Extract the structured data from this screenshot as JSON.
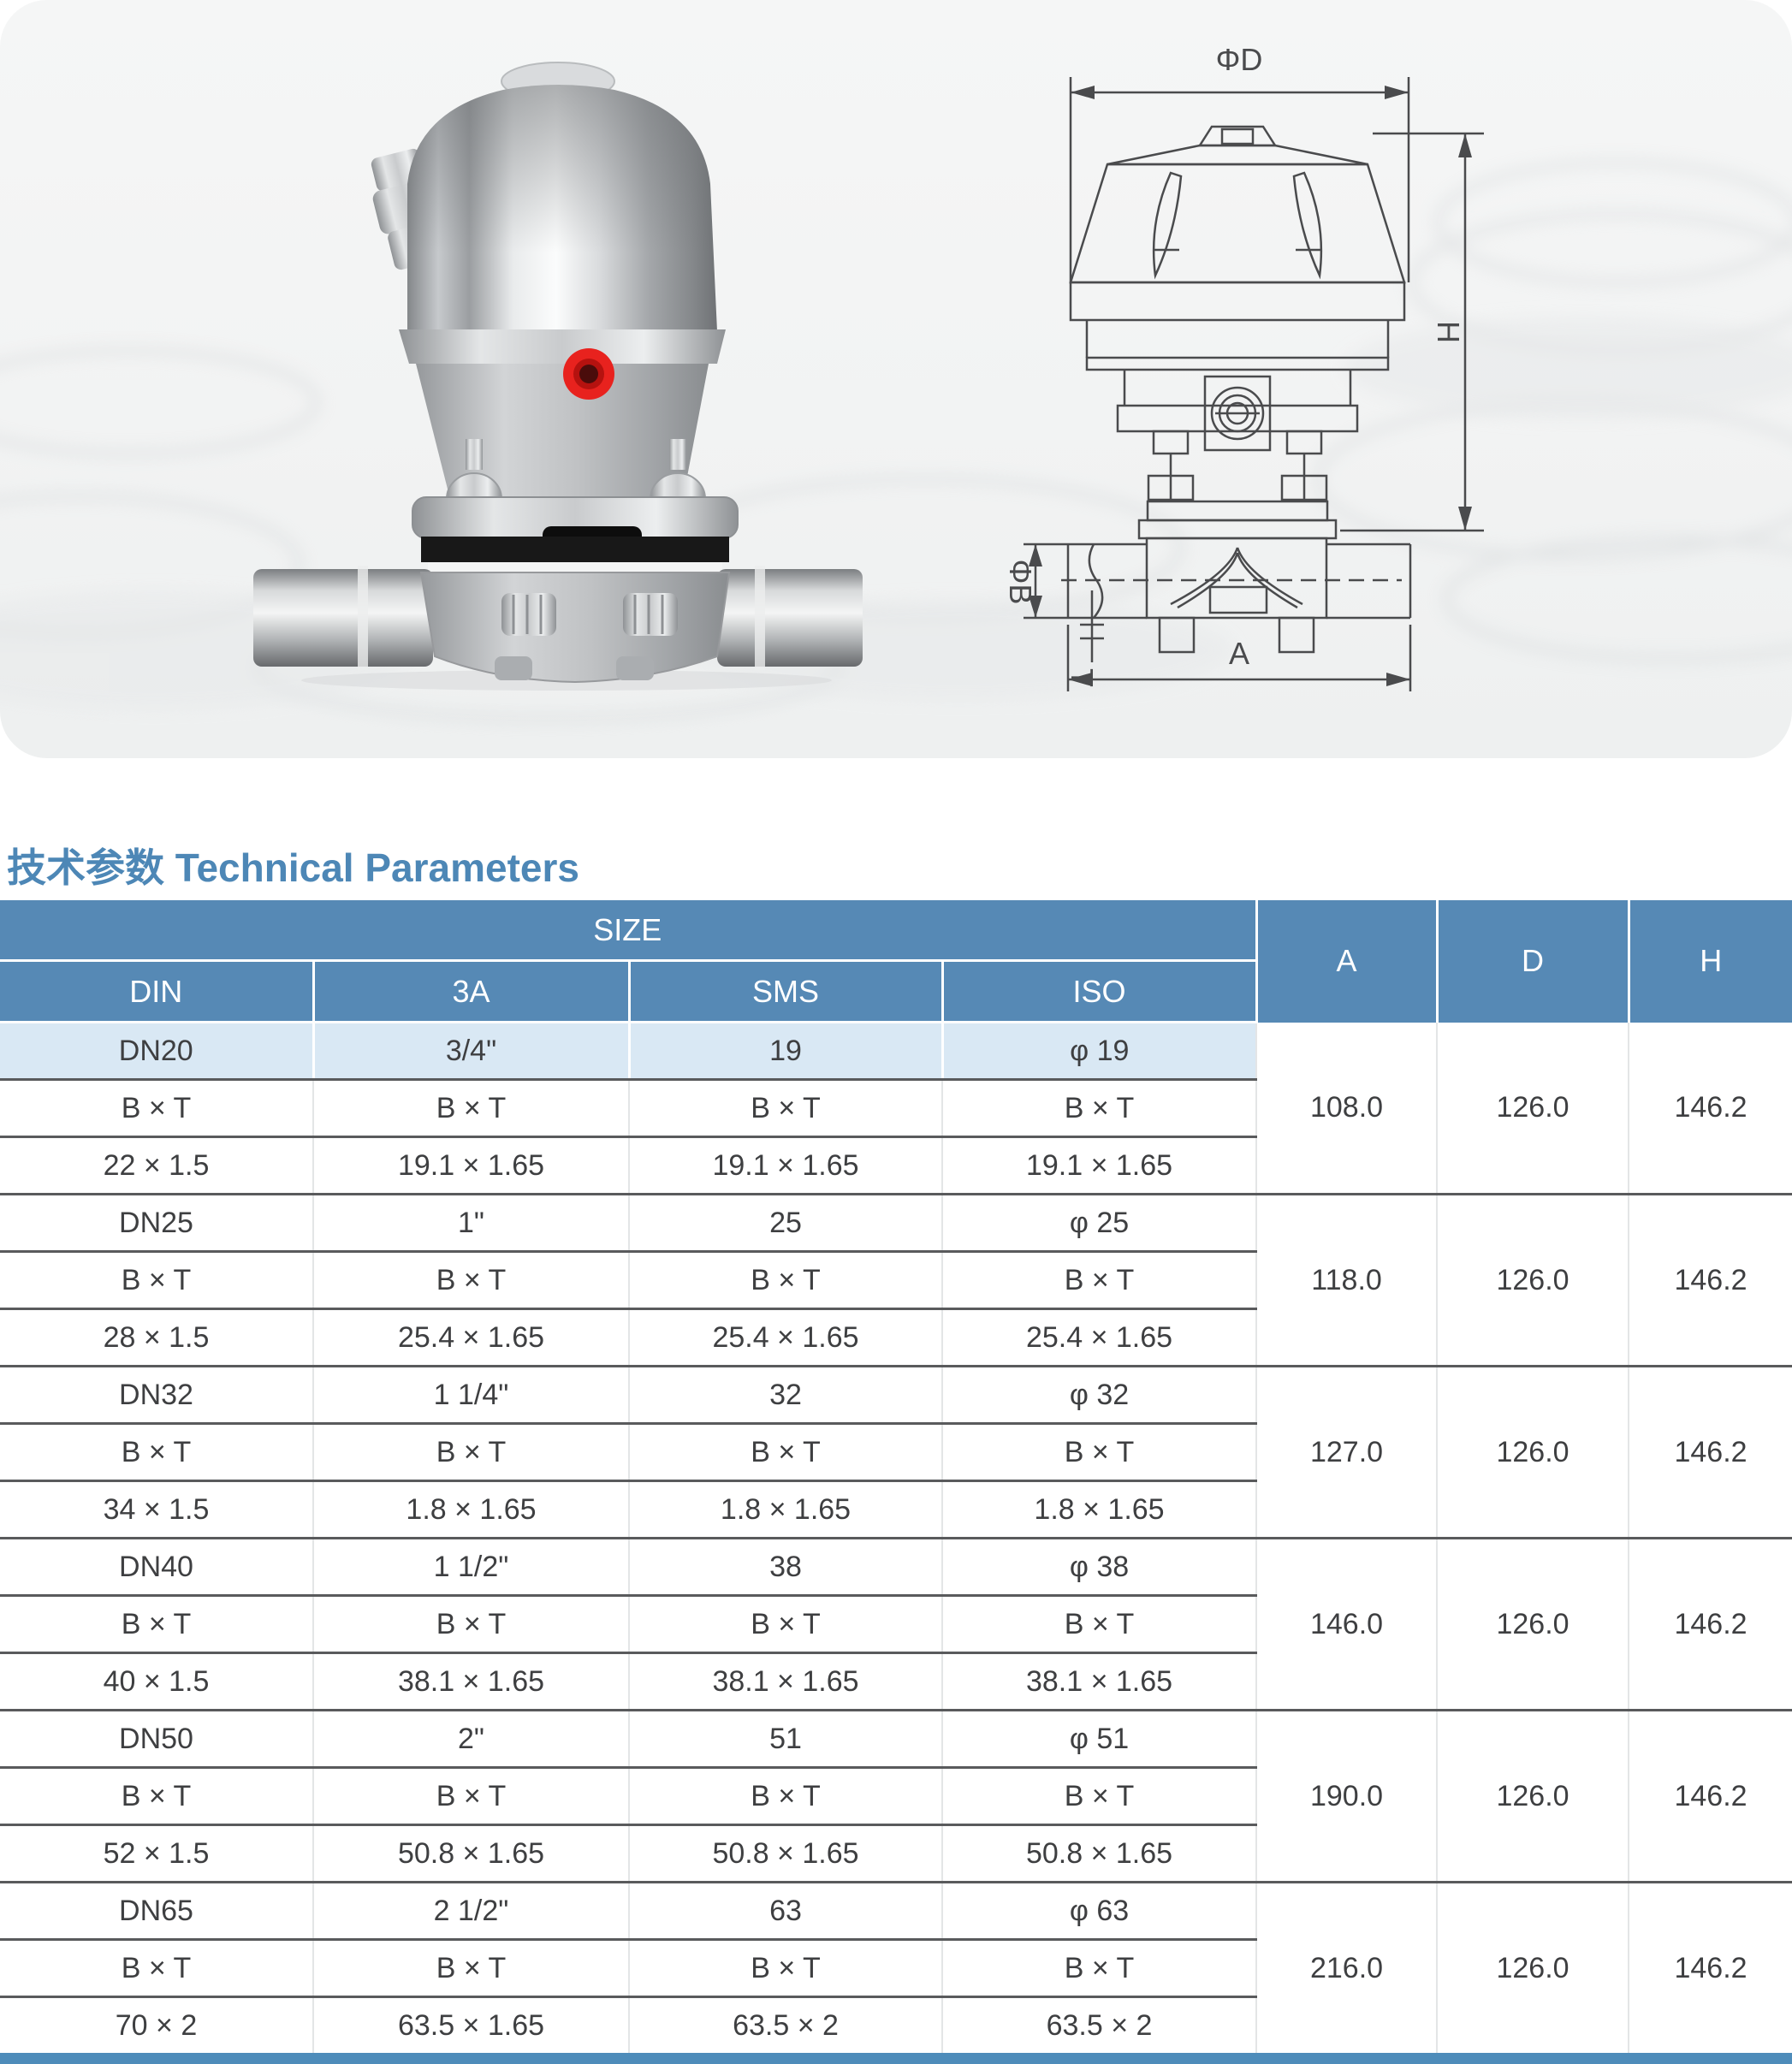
{
  "title": {
    "text": "技术参数 Technical Parameters"
  },
  "drawing": {
    "labels": {
      "phi_d": "ΦD",
      "h": "H",
      "phi_b": "ΦB",
      "t": "T",
      "a": "A"
    }
  },
  "table": {
    "header": {
      "size": "SIZE",
      "din": "DIN",
      "threeA": "3A",
      "sms": "SMS",
      "iso": "ISO",
      "a": "A",
      "d": "D",
      "h": "H"
    },
    "groups": [
      {
        "highlight": true,
        "rows": [
          [
            "DN20",
            "3/4\"",
            "19",
            "φ 19"
          ],
          [
            "B × T",
            "B × T",
            "B × T",
            "B × T"
          ],
          [
            "22 × 1.5",
            "19.1 × 1.65",
            "19.1 × 1.65",
            "19.1 × 1.65"
          ]
        ],
        "a": "108.0",
        "d": "126.0",
        "h": "146.2"
      },
      {
        "highlight": false,
        "rows": [
          [
            "DN25",
            "1\"",
            "25",
            "φ 25"
          ],
          [
            "B × T",
            "B × T",
            "B × T",
            "B × T"
          ],
          [
            "28 × 1.5",
            "25.4 × 1.65",
            "25.4 × 1.65",
            "25.4 × 1.65"
          ]
        ],
        "a": "118.0",
        "d": "126.0",
        "h": "146.2"
      },
      {
        "highlight": false,
        "rows": [
          [
            "DN32",
            "1 1/4\"",
            "32",
            "φ 32"
          ],
          [
            "B × T",
            "B × T",
            "B × T",
            "B × T"
          ],
          [
            "34 × 1.5",
            "1.8 × 1.65",
            "1.8 × 1.65",
            "1.8 × 1.65"
          ]
        ],
        "a": "127.0",
        "d": "126.0",
        "h": "146.2"
      },
      {
        "highlight": false,
        "rows": [
          [
            "DN40",
            "1 1/2\"",
            "38",
            "φ 38"
          ],
          [
            "B × T",
            "B × T",
            "B × T",
            "B × T"
          ],
          [
            "40 × 1.5",
            "38.1 × 1.65",
            "38.1 × 1.65",
            "38.1 × 1.65"
          ]
        ],
        "a": "146.0",
        "d": "126.0",
        "h": "146.2"
      },
      {
        "highlight": false,
        "rows": [
          [
            "DN50",
            "2\"",
            "51",
            "φ 51"
          ],
          [
            "B × T",
            "B × T",
            "B × T",
            "B × T"
          ],
          [
            "52 × 1.5",
            "50.8 × 1.65",
            "50.8 × 1.65",
            "50.8 × 1.65"
          ]
        ],
        "a": "190.0",
        "d": "126.0",
        "h": "146.2"
      },
      {
        "highlight": false,
        "rows": [
          [
            "DN65",
            "2 1/2\"",
            "63",
            "φ 63"
          ],
          [
            "B × T",
            "B × T",
            "B × T",
            "B × T"
          ],
          [
            "70 × 2",
            "63.5 × 1.65",
            "63.5 × 2",
            "63.5 × 2"
          ]
        ],
        "a": "216.0",
        "d": "126.0",
        "h": "146.2"
      }
    ]
  },
  "colors": {
    "header_blue": "#5689b5",
    "highlight_row": "#d9e8f4",
    "title_blue": "#4d87b6",
    "group_line": "#595a5c",
    "bottom_bar": "#4e8cba",
    "photo_accent_red": "#e8221e"
  }
}
